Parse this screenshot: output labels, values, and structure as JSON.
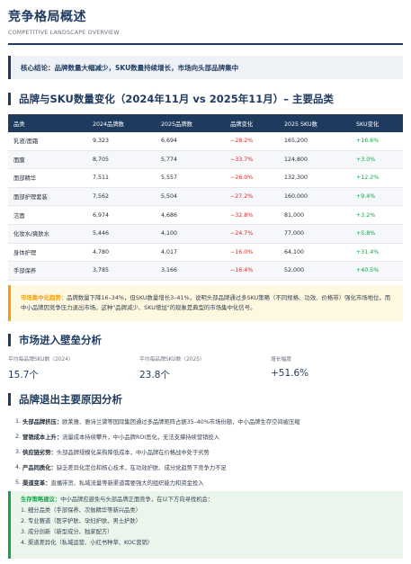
{
  "header": {
    "title": "竞争格局概述",
    "subtitle": "COMPETITIVE LANDSCAPE OVERVIEW"
  },
  "core": {
    "text": "核心结论：品牌数量大幅减少，SKU数量持续增长，市场向头部品牌集中"
  },
  "table_section": {
    "title": "品牌与SKU数量变化（2024年11月 vs 2025年11月）– 主要品类",
    "columns": [
      "品类",
      "2024品牌数",
      "2025品牌数",
      "品牌变化",
      "2025 SKU数",
      "SKU变化"
    ],
    "rows": [
      [
        "乳液/面霜",
        "9,323",
        "6,694",
        "−28.2%",
        "165,200",
        "+16.6%"
      ],
      [
        "面膜",
        "8,705",
        "5,774",
        "−33.7%",
        "124,800",
        "+3.0%"
      ],
      [
        "面部精华",
        "7,511",
        "5,557",
        "−26.0%",
        "132,300",
        "+12.2%"
      ],
      [
        "面部护理套装",
        "7,562",
        "5,504",
        "−27.2%",
        "160,000",
        "+9.4%"
      ],
      [
        "洁面",
        "6,974",
        "4,686",
        "−32.8%",
        "81,000",
        "+3.2%"
      ],
      [
        "化妆水/爽肤水",
        "5,446",
        "4,100",
        "−24.7%",
        "77,000",
        "+5.8%"
      ],
      [
        "身体护理",
        "4,780",
        "4,017",
        "−16.0%",
        "64,100",
        "+31.4%"
      ],
      [
        "手部保养",
        "3,785",
        "3,166",
        "−16.4%",
        "52,000",
        "+40.5%"
      ]
    ]
  },
  "trend": {
    "lead": "市场集中化趋势：",
    "text": "品牌数量下降16–34%，但SKU数量增长3–41%，说明头部品牌通过多SKU策略（不同规格、功效、价格带）强化市场地位，而中小品牌因竞争压力退出市场。这种\"品牌减少、SKU增加\"的现象是典型的市场集中化信号。"
  },
  "barrier": {
    "title": "市场进入壁垒分析",
    "metrics": [
      {
        "label": "平均每品牌SKU数（2024）",
        "value": "15.7个"
      },
      {
        "label": "平均每品牌SKU数（2025）",
        "value": "23.8个"
      },
      {
        "label": "增长幅度",
        "value": "+51.6%"
      }
    ]
  },
  "exit": {
    "title": "品牌退出主要原因分析",
    "items": [
      {
        "num": "1.",
        "key": "头部品牌挤压：",
        "text": "欧莱雅、雅诗兰黛等国际集团通过多品牌矩阵占据35–40%市场份额，中小品牌生存空间被压缩"
      },
      {
        "num": "2.",
        "key": "营销成本上升：",
        "text": "流量成本持续攀升，中小品牌ROI恶化，无法支撑持续营销投入"
      },
      {
        "num": "3.",
        "key": "供应链劣势：",
        "text": "头部品牌规模化采购降低成本，中小品牌在价格战中处于劣势"
      },
      {
        "num": "4.",
        "key": "产品同质化：",
        "text": "缺乏差异化定位和核心技术，在功效护肤、成分党趋势下竞争力不足"
      },
      {
        "num": "5.",
        "key": "渠道变革：",
        "text": "直播带货、私域流量等新渠道需要强大的组织能力和资金投入"
      }
    ]
  },
  "strategy": {
    "lead": "生存策略建议：",
    "intro": "中小品牌应避免与头部品牌正面竞争，在以下方向寻找机会：",
    "items": [
      "1. 细分品类（手部保养、次抛精华等新兴品类）",
      "2. 专业赛道（医学护肤、孕妇护肤、男士护肤）",
      "3. 成分创新（新型成分、独家配方）",
      "4. 渠道差异化（私域运营、小红书种草、KOC营销）"
    ]
  },
  "colors": {
    "primary": "#1e3a5f",
    "negative": "#dc2626",
    "positive": "#16a34a",
    "trend_accent": "#f59e0b",
    "strategy_accent": "#16a34a"
  }
}
